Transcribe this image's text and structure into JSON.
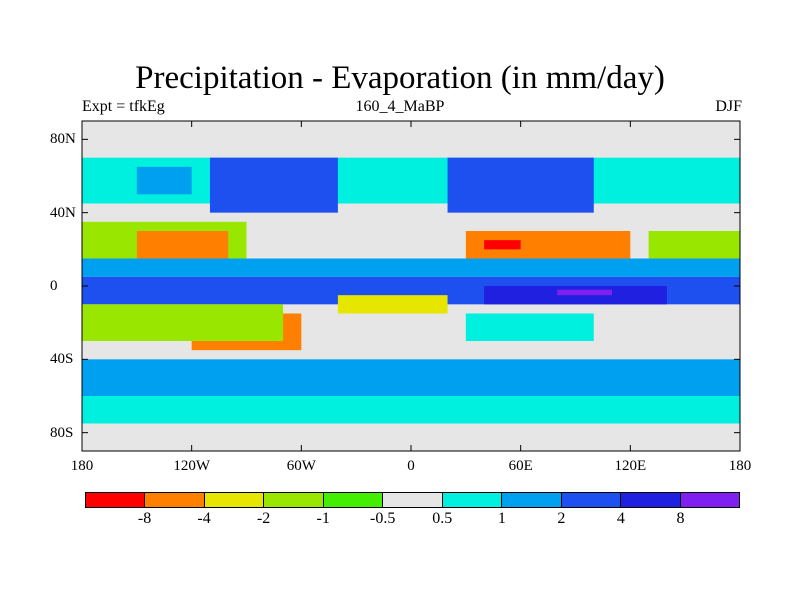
{
  "plot": {
    "title": "Precipitation - Evaporation (in mm/day)",
    "left_label": "Expt = tfkEg",
    "center_label": "160_4_MaBP",
    "right_label": "DJF"
  },
  "lat_ticks": [
    {
      "label": "80N",
      "lat": 80
    },
    {
      "label": "40N",
      "lat": 40
    },
    {
      "label": "0",
      "lat": 0
    },
    {
      "label": "40S",
      "lat": -40
    },
    {
      "label": "80S",
      "lat": -80
    }
  ],
  "lon_ticks": [
    {
      "label": "180",
      "lon": -180
    },
    {
      "label": "120W",
      "lon": -120
    },
    {
      "label": "60W",
      "lon": -60
    },
    {
      "label": "0",
      "lon": 0
    },
    {
      "label": "60E",
      "lon": 60
    },
    {
      "label": "120E",
      "lon": 120
    },
    {
      "label": "180",
      "lon": 180
    }
  ],
  "colorbar": {
    "colors": [
      "#ff0000",
      "#ff8000",
      "#e6e600",
      "#99e600",
      "#44ee00",
      "#e6e6e6",
      "#00f0e0",
      "#00a0f0",
      "#1e50f0",
      "#2020e0",
      "#8020f0"
    ],
    "labels": [
      "-8",
      "-4",
      "-2",
      "-1",
      "-0.5",
      "0.5",
      "1",
      "2",
      "4",
      "8"
    ]
  },
  "map": {
    "extent": {
      "lon": [
        -180,
        180
      ],
      "lat": [
        -90,
        90
      ]
    },
    "background_color": "#e6e6e6",
    "zones": [
      {
        "lat": [
          60,
          90
        ],
        "lon": [
          -180,
          180
        ],
        "color": "#e6e6e6"
      },
      {
        "lat": [
          45,
          70
        ],
        "lon": [
          -180,
          180
        ],
        "color": "#00f0e0"
      },
      {
        "lat": [
          40,
          70
        ],
        "lon": [
          -110,
          -40
        ],
        "color": "#1e50f0"
      },
      {
        "lat": [
          40,
          70
        ],
        "lon": [
          20,
          100
        ],
        "color": "#1e50f0"
      },
      {
        "lat": [
          50,
          65
        ],
        "lon": [
          -150,
          -120
        ],
        "color": "#00a0f0"
      },
      {
        "lat": [
          15,
          35
        ],
        "lon": [
          -180,
          -90
        ],
        "color": "#99e600"
      },
      {
        "lat": [
          15,
          30
        ],
        "lon": [
          -150,
          -100
        ],
        "color": "#ff8000"
      },
      {
        "lat": [
          15,
          30
        ],
        "lon": [
          30,
          120
        ],
        "color": "#ff8000"
      },
      {
        "lat": [
          20,
          25
        ],
        "lon": [
          40,
          60
        ],
        "color": "#ff0000"
      },
      {
        "lat": [
          15,
          30
        ],
        "lon": [
          130,
          180
        ],
        "color": "#99e600"
      },
      {
        "lat": [
          5,
          15
        ],
        "lon": [
          -180,
          180
        ],
        "color": "#00a0f0"
      },
      {
        "lat": [
          -10,
          5
        ],
        "lon": [
          -180,
          180
        ],
        "color": "#1e50f0"
      },
      {
        "lat": [
          -10,
          0
        ],
        "lon": [
          40,
          140
        ],
        "color": "#2020e0"
      },
      {
        "lat": [
          -5,
          -2
        ],
        "lon": [
          80,
          110
        ],
        "color": "#8020f0"
      },
      {
        "lat": [
          -35,
          -15
        ],
        "lon": [
          -120,
          -60
        ],
        "color": "#ff8000"
      },
      {
        "lat": [
          -30,
          -10
        ],
        "lon": [
          -180,
          -70
        ],
        "color": "#99e600"
      },
      {
        "lat": [
          -30,
          -15
        ],
        "lon": [
          30,
          100
        ],
        "color": "#00f0e0"
      },
      {
        "lat": [
          -15,
          -5
        ],
        "lon": [
          -40,
          20
        ],
        "color": "#e6e600"
      },
      {
        "lat": [
          -60,
          -40
        ],
        "lon": [
          -180,
          180
        ],
        "color": "#00a0f0"
      },
      {
        "lat": [
          -75,
          -60
        ],
        "lon": [
          -180,
          180
        ],
        "color": "#00f0e0"
      },
      {
        "lat": [
          -90,
          -75
        ],
        "lon": [
          -180,
          180
        ],
        "color": "#e6e6e6"
      }
    ]
  }
}
